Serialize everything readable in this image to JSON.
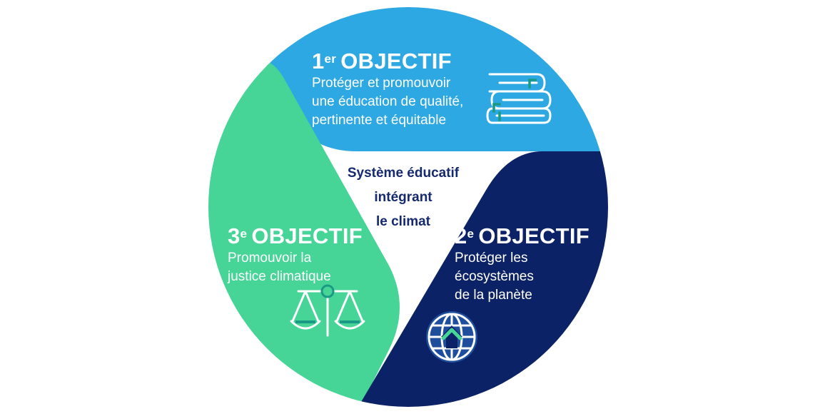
{
  "center": {
    "lines": [
      "Système éducatif",
      "intégrant",
      "le climat"
    ]
  },
  "objectives": [
    {
      "number": "1",
      "suffix": "er",
      "word": "OBJECTIF",
      "lines": [
        "Protéger et promouvoir",
        "une éducation de qualité,",
        "pertinente et équitable"
      ],
      "icon": "books-icon",
      "color": "#2ea8e2"
    },
    {
      "number": "2",
      "suffix": "e",
      "word": "OBJECTIF",
      "lines": [
        "Protéger les",
        "écosystèmes",
        "de la planète"
      ],
      "icon": "globe-icon",
      "color": "#0c2266"
    },
    {
      "number": "3",
      "suffix": "e",
      "word": "OBJECTIF",
      "lines": [
        "Promouvoir la",
        "justice climatique"
      ],
      "icon": "scales-icon",
      "color": "#46d597"
    }
  ],
  "colors": {
    "accent": "#1a9a86",
    "center_text": "#15296e",
    "background": "#ffffff"
  }
}
